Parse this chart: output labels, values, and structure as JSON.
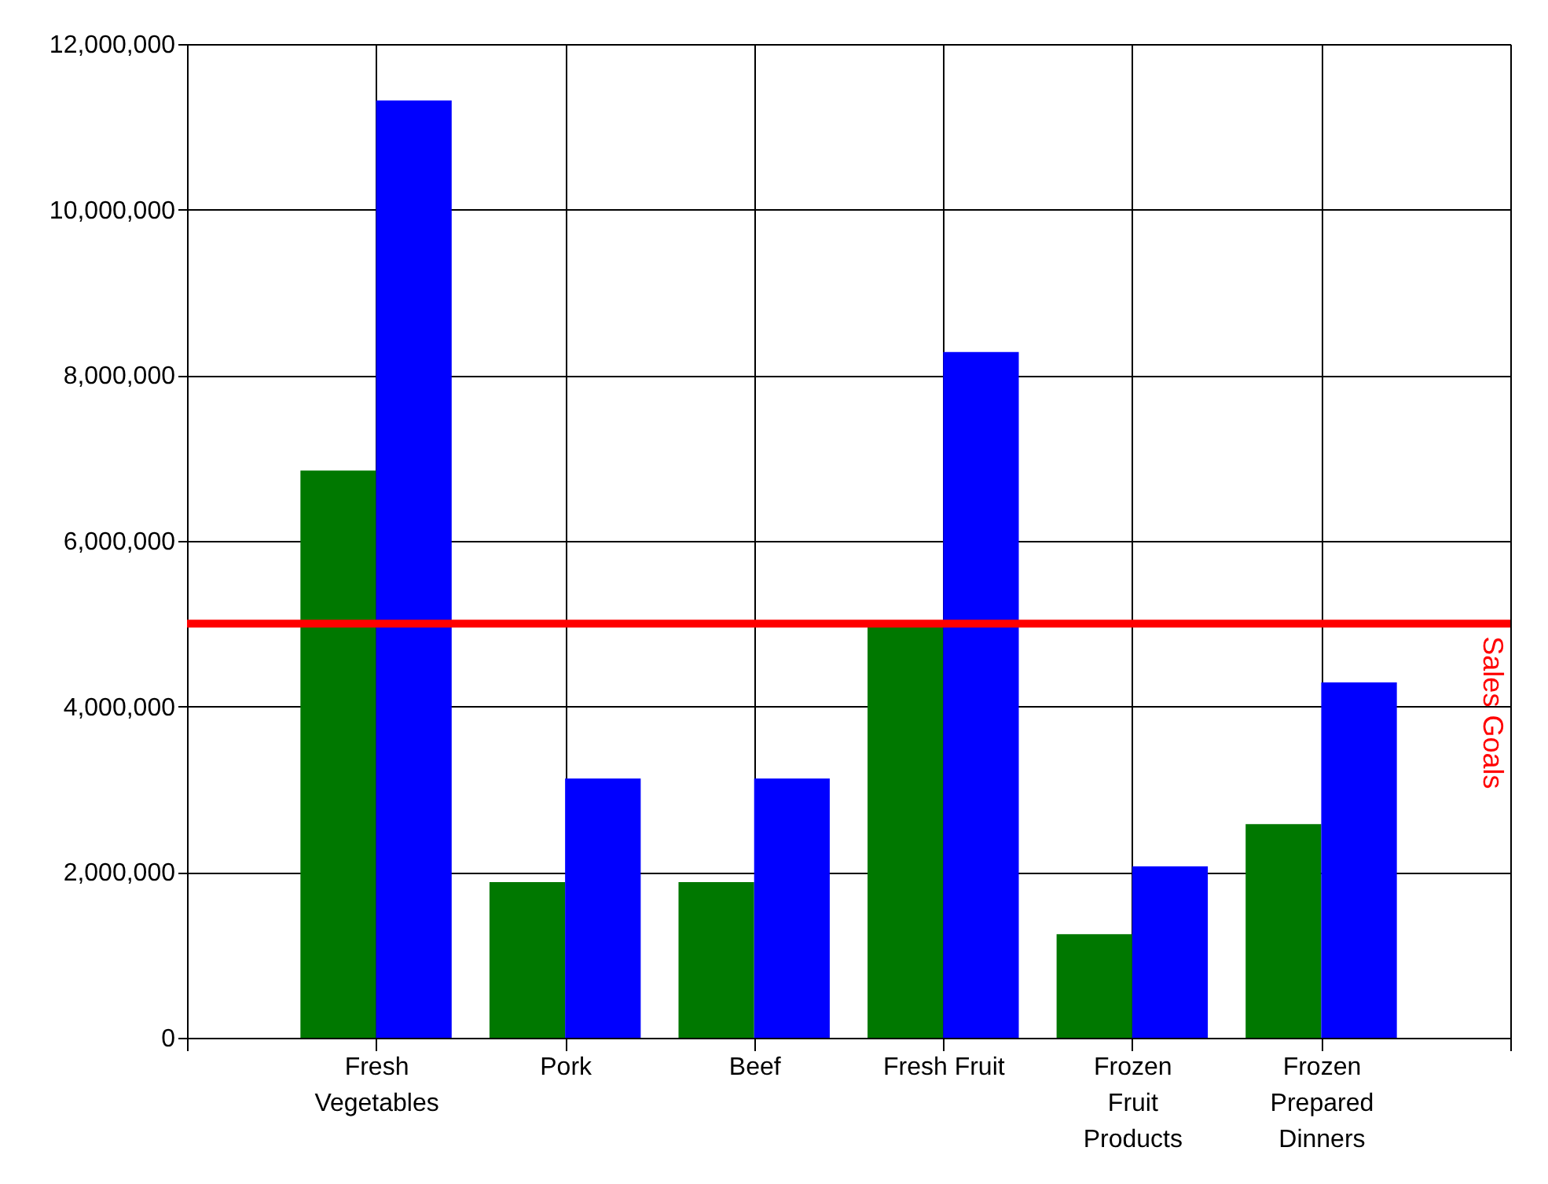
{
  "chart_data": {
    "type": "bar",
    "categories": [
      "Fresh\nVegetables",
      "Pork",
      "Beef",
      "Fresh Fruit",
      "Frozen\nFruit\nProducts",
      "Frozen\nPrepared\nDinners"
    ],
    "series": [
      {
        "color": "#007800",
        "values": [
          6850000,
          1880000,
          1880000,
          4970000,
          1250000,
          2580000
        ]
      },
      {
        "color": "#0000ff",
        "values": [
          11320000,
          3130000,
          3130000,
          8280000,
          2070000,
          4290000
        ]
      }
    ],
    "ylim": [
      0,
      12000000
    ],
    "yticks": [
      0,
      {
        "value": 2000000,
        "label": "2,000,000"
      },
      {
        "value": 4000000,
        "label": "4,000,000"
      },
      {
        "value": 6000000,
        "label": "6,000,000"
      },
      {
        "value": 8000000,
        "label": "8,000,000"
      },
      {
        "value": 10000000,
        "label": "10,000,000"
      },
      {
        "value": 12000000,
        "label": "12,000,000"
      }
    ],
    "grid": true,
    "ref_lines": [
      {
        "axis": "y",
        "value": 5000000,
        "label": "Sales Goals",
        "color": "#ff0000"
      }
    ]
  }
}
